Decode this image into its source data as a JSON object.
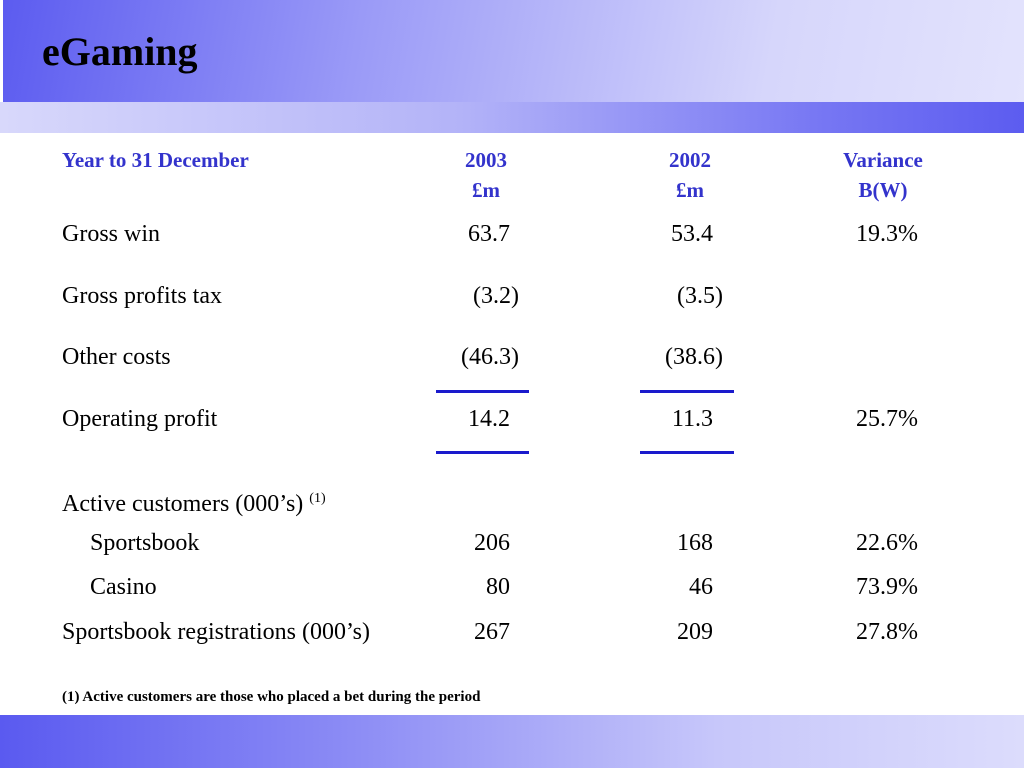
{
  "title": "eGaming",
  "header": {
    "label": "Year to 31 December",
    "col1": [
      "2003",
      "£m"
    ],
    "col2": [
      "2002",
      "£m"
    ],
    "col3": [
      "Variance",
      "B(W)"
    ]
  },
  "rows": {
    "gross_win": {
      "label": "Gross win",
      "v2003": "63.7",
      "v2002": "53.4",
      "variance": "19.3%"
    },
    "gross_profits_tax": {
      "label": "Gross profits tax",
      "v2003": "(3.2)",
      "v2002": "(3.5)",
      "variance": ""
    },
    "other_costs": {
      "label": "Other costs",
      "v2003": "(46.3)",
      "v2002": "(38.6)",
      "variance": ""
    },
    "operating_profit": {
      "label": "Operating profit",
      "v2003": "14.2",
      "v2002": "11.3",
      "variance": "25.7%"
    },
    "active_customers": {
      "label": "Active customers (000’s)",
      "note": "(1)"
    },
    "sportsbook": {
      "label": "Sportsbook",
      "v2003": "206",
      "v2002": "168",
      "variance": "22.6%"
    },
    "casino": {
      "label": "Casino",
      "v2003": "80",
      "v2002": "46",
      "variance": "73.9%"
    },
    "sportsbook_registrations": {
      "label": "Sportsbook registrations (000’s)",
      "v2003": "267",
      "v2002": "209",
      "variance": "27.8%"
    }
  },
  "footnote": "(1) Active customers are those who placed a bet during the period",
  "colors": {
    "header_text": "#3333cc",
    "rule": "#1a1acc",
    "band": "#5b5bf0"
  }
}
